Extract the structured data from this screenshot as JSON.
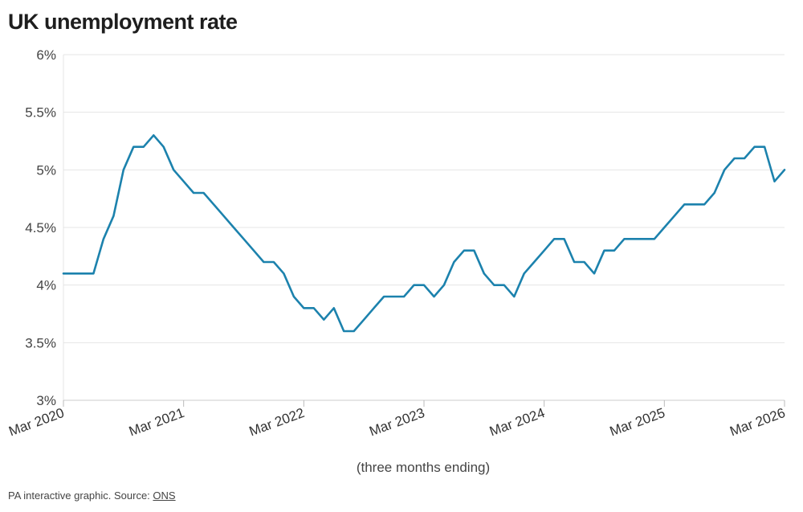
{
  "chart_data": {
    "type": "line",
    "title": "UK unemployment rate",
    "xlabel": "(three months ending)",
    "ylabel": "",
    "ylim": [
      3,
      6
    ],
    "y_ticks": [
      3,
      3.5,
      4,
      4.5,
      5,
      5.5,
      6
    ],
    "y_tick_labels": [
      "3%",
      "3.5%",
      "4%",
      "4.5%",
      "5%",
      "5.5%",
      "6%"
    ],
    "x_ticks": [
      "Mar 2020",
      "Mar 2021",
      "Mar 2022",
      "Mar 2023",
      "Mar 2024",
      "Mar 2025",
      "Mar 2026"
    ],
    "grid": true,
    "legend": "none",
    "line_color": "#1c82ad",
    "series": [
      {
        "x": [
          "2020-03",
          "2020-04",
          "2020-05",
          "2020-06",
          "2020-07",
          "2020-08",
          "2020-09",
          "2020-10",
          "2020-11",
          "2020-12",
          "2021-01",
          "2021-02",
          "2021-03",
          "2021-04",
          "2021-05",
          "2021-06",
          "2021-07",
          "2021-08",
          "2021-09",
          "2021-10",
          "2021-11",
          "2021-12",
          "2022-01",
          "2022-02",
          "2022-03",
          "2022-04",
          "2022-05",
          "2022-06",
          "2022-07",
          "2022-08",
          "2022-09",
          "2022-10",
          "2022-11",
          "2022-12",
          "2023-01",
          "2023-02",
          "2023-03",
          "2023-04",
          "2023-05",
          "2023-06",
          "2023-07",
          "2023-08",
          "2023-09",
          "2023-10",
          "2023-11",
          "2023-12",
          "2024-01",
          "2024-02",
          "2024-03",
          "2024-04",
          "2024-05",
          "2024-06",
          "2024-07",
          "2024-08",
          "2024-09",
          "2024-10",
          "2024-11",
          "2024-12",
          "2025-01",
          "2025-02",
          "2025-03",
          "2025-04",
          "2025-05",
          "2025-06",
          "2025-07",
          "2025-08",
          "2025-09",
          "2025-10",
          "2025-11",
          "2025-12",
          "2026-01",
          "2026-02",
          "2026-03"
        ],
        "values": [
          4.1,
          4.1,
          4.1,
          4.1,
          4.4,
          4.6,
          5.0,
          5.2,
          5.2,
          5.3,
          5.2,
          5.0,
          4.9,
          4.8,
          4.8,
          4.7,
          4.6,
          4.5,
          4.4,
          4.3,
          4.2,
          4.2,
          4.1,
          3.9,
          3.8,
          3.8,
          3.7,
          3.8,
          3.6,
          3.6,
          3.7,
          3.8,
          3.9,
          3.9,
          3.9,
          4.0,
          4.0,
          3.9,
          4.0,
          4.2,
          4.3,
          4.3,
          4.1,
          4.0,
          4.0,
          3.9,
          4.1,
          4.2,
          4.3,
          4.4,
          4.4,
          4.2,
          4.2,
          4.1,
          4.3,
          4.3,
          4.4,
          4.4,
          4.4,
          4.4,
          4.5,
          4.6,
          4.7,
          4.7,
          4.7,
          4.8,
          5.0,
          5.1,
          5.1,
          5.2,
          5.2,
          4.9,
          5.0
        ]
      }
    ]
  },
  "footer": {
    "text": "PA interactive graphic. Source: ",
    "link_text": "ONS"
  }
}
